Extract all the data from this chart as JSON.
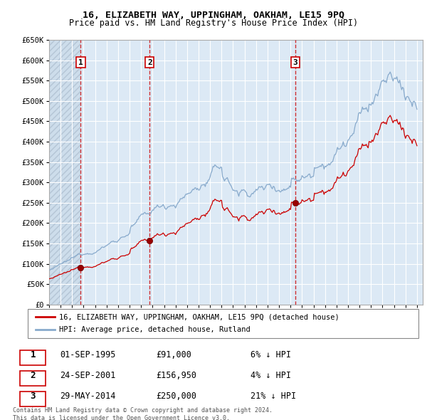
{
  "title": "16, ELIZABETH WAY, UPPINGHAM, OAKHAM, LE15 9PQ",
  "subtitle": "Price paid vs. HM Land Registry's House Price Index (HPI)",
  "ylim": [
    0,
    650000
  ],
  "yticks": [
    0,
    50000,
    100000,
    150000,
    200000,
    250000,
    300000,
    350000,
    400000,
    450000,
    500000,
    550000,
    600000,
    650000
  ],
  "ytick_labels": [
    "£0",
    "£50K",
    "£100K",
    "£150K",
    "£200K",
    "£250K",
    "£300K",
    "£350K",
    "£400K",
    "£450K",
    "£500K",
    "£550K",
    "£600K",
    "£650K"
  ],
  "xlim_start": 1993.0,
  "xlim_end": 2025.5,
  "sale_dates": [
    1995.75,
    2001.75,
    2014.41
  ],
  "sale_prices": [
    91000,
    156950,
    250000
  ],
  "sale_labels": [
    "1",
    "2",
    "3"
  ],
  "sale_date_strings": [
    "01-SEP-1995",
    "24-SEP-2001",
    "29-MAY-2014"
  ],
  "sale_price_strings": [
    "£91,000",
    "£156,950",
    "£250,000"
  ],
  "sale_pct_strings": [
    "6% ↓ HPI",
    "4% ↓ HPI",
    "21% ↓ HPI"
  ],
  "red_color": "#cc0000",
  "blue_color": "#88aacc",
  "chart_bg": "#dce9f5",
  "grid_color": "#ffffff",
  "legend_label_red": "16, ELIZABETH WAY, UPPINGHAM, OAKHAM, LE15 9PQ (detached house)",
  "legend_label_blue": "HPI: Average price, detached house, Rutland",
  "footer_line1": "Contains HM Land Registry data © Crown copyright and database right 2024.",
  "footer_line2": "This data is licensed under the Open Government Licence v3.0."
}
